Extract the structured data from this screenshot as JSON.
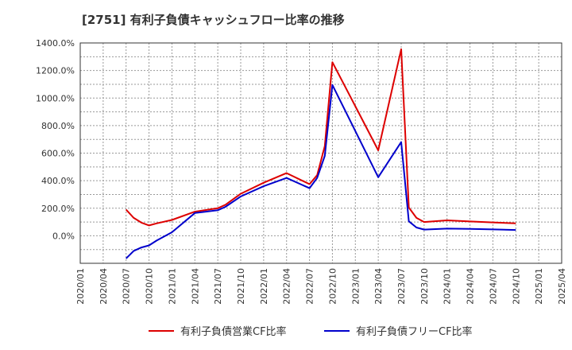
{
  "chart_data": {
    "type": "line",
    "title": "[2751]  有利子負債キャッシュフロー比率の推移",
    "xlabel": "",
    "ylabel": "",
    "grid": true,
    "legend_position": "bottom",
    "ylim": [
      -200,
      1400
    ],
    "y_ticks": [
      {
        "value": 0,
        "label": "0.0%"
      },
      {
        "value": 200,
        "label": "200.0%"
      },
      {
        "value": 400,
        "label": "400.0%"
      },
      {
        "value": 600,
        "label": "600.0%"
      },
      {
        "value": 800,
        "label": "800.0%"
      },
      {
        "value": 1000,
        "label": "1000.0%"
      },
      {
        "value": 1200,
        "label": "1200.0%"
      },
      {
        "value": 1400,
        "label": "1400.0%"
      }
    ],
    "xlim": [
      0,
      63
    ],
    "x_ticks": [
      {
        "value": 0,
        "label": "2020/01"
      },
      {
        "value": 3,
        "label": "2020/04"
      },
      {
        "value": 6,
        "label": "2020/07"
      },
      {
        "value": 9,
        "label": "2020/10"
      },
      {
        "value": 12,
        "label": "2021/01"
      },
      {
        "value": 15,
        "label": "2021/04"
      },
      {
        "value": 18,
        "label": "2021/07"
      },
      {
        "value": 21,
        "label": "2021/10"
      },
      {
        "value": 24,
        "label": "2022/01"
      },
      {
        "value": 27,
        "label": "2022/04"
      },
      {
        "value": 30,
        "label": "2022/07"
      },
      {
        "value": 33,
        "label": "2022/10"
      },
      {
        "value": 36,
        "label": "2023/01"
      },
      {
        "value": 39,
        "label": "2023/04"
      },
      {
        "value": 42,
        "label": "2023/07"
      },
      {
        "value": 45,
        "label": "2023/10"
      },
      {
        "value": 48,
        "label": "2024/01"
      },
      {
        "value": 51,
        "label": "2024/04"
      },
      {
        "value": 54,
        "label": "2024/07"
      },
      {
        "value": 57,
        "label": "2024/10"
      },
      {
        "value": 60,
        "label": "2025/01"
      },
      {
        "value": 63,
        "label": "2025/04"
      }
    ],
    "series": [
      {
        "name": "有利子負債営業CF比率",
        "color": "#dd0000",
        "points": [
          [
            6,
            190
          ],
          [
            7,
            130
          ],
          [
            8,
            95
          ],
          [
            9,
            75
          ],
          [
            10,
            90
          ],
          [
            12,
            115
          ],
          [
            15,
            175
          ],
          [
            18,
            200
          ],
          [
            19,
            225
          ],
          [
            21,
            305
          ],
          [
            24,
            385
          ],
          [
            27,
            455
          ],
          [
            30,
            375
          ],
          [
            31,
            440
          ],
          [
            32,
            650
          ],
          [
            33,
            1260
          ],
          [
            36,
            940
          ],
          [
            39,
            620
          ],
          [
            42,
            1355
          ],
          [
            43,
            205
          ],
          [
            44,
            130
          ],
          [
            45,
            100
          ],
          [
            48,
            112
          ],
          [
            51,
            104
          ],
          [
            54,
            97
          ],
          [
            57,
            90
          ]
        ]
      },
      {
        "name": "有利子負債フリーCF比率",
        "color": "#0000cc",
        "points": [
          [
            6,
            -165
          ],
          [
            7,
            -110
          ],
          [
            8,
            -85
          ],
          [
            9,
            -70
          ],
          [
            10,
            -35
          ],
          [
            12,
            25
          ],
          [
            15,
            165
          ],
          [
            18,
            185
          ],
          [
            19,
            210
          ],
          [
            21,
            285
          ],
          [
            24,
            360
          ],
          [
            27,
            420
          ],
          [
            30,
            345
          ],
          [
            31,
            420
          ],
          [
            32,
            580
          ],
          [
            33,
            1095
          ],
          [
            36,
            760
          ],
          [
            39,
            425
          ],
          [
            42,
            680
          ],
          [
            43,
            105
          ],
          [
            44,
            60
          ],
          [
            45,
            45
          ],
          [
            48,
            52
          ],
          [
            51,
            50
          ],
          [
            54,
            46
          ],
          [
            57,
            42
          ]
        ]
      }
    ]
  }
}
